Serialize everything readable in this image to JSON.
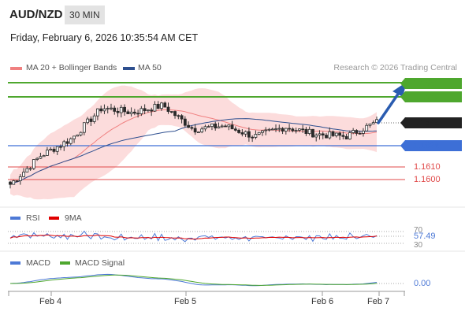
{
  "header": {
    "symbol": "AUD/NZD",
    "timeframe": "30 MIN",
    "datetime": "Friday, February 6, 2026 10:35:54 AM CET"
  },
  "legend": {
    "ma20_label": "MA 20 + Bollinger Bands",
    "ma50_label": "MA 50",
    "ma20_color": "#f08080",
    "ma50_color": "#2e4f8f",
    "attribution": "Research © 2026 Trading Central"
  },
  "levels": {
    "r2": "1.1681",
    "r1": "1.1670",
    "current": "1.1648",
    "pivot": "1.1628",
    "s1": "1.1610",
    "s2": "1.1600",
    "resistance_color": "#4ea72e",
    "pivot_color": "#3d6fd6",
    "support_color": "#e04a4a",
    "current_color": "#222222"
  },
  "rsi": {
    "label": "RSI",
    "ma_label": "9MA",
    "rsi_color": "#4d79d6",
    "ma_color": "#e00000",
    "level_upper": "70",
    "level_lower": "30",
    "value": "57.49"
  },
  "macd": {
    "label": "MACD",
    "signal_label": "MACD Signal",
    "macd_color": "#4d79d6",
    "signal_color": "#4ea72e",
    "value": "0.00"
  },
  "xaxis": {
    "labels": [
      "Feb 4",
      "Feb 5",
      "Feb 6",
      "Feb 7"
    ]
  },
  "chart_data": {
    "type": "candlestick",
    "y_range": [
      1.158,
      1.169
    ],
    "current_price": 1.1648,
    "candle_count": 110,
    "key_closes": [
      1.1596,
      1.162,
      1.1634,
      1.166,
      1.1656,
      1.1662,
      1.1642,
      1.1645,
      1.1636,
      1.1644,
      1.1638,
      1.1636,
      1.1648
    ],
    "forecast_target": 1.1681
  }
}
